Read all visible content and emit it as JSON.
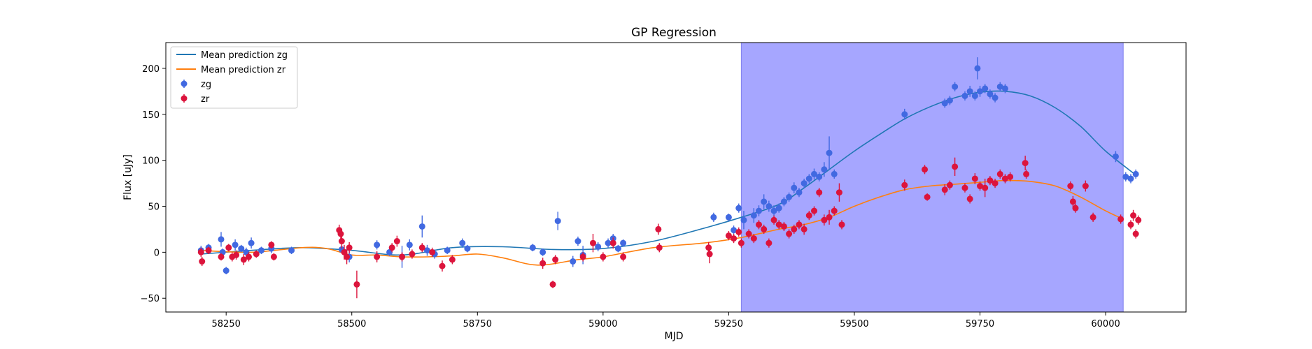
{
  "chart_data": {
    "type": "scatter",
    "title": "GP Regression",
    "xlabel": "MJD",
    "ylabel": "Flux [uJy]",
    "xlim": [
      58130,
      60160
    ],
    "ylim": [
      -65,
      228
    ],
    "xticks": [
      58250,
      58500,
      58750,
      59000,
      59250,
      59500,
      59750,
      60000
    ],
    "yticks": [
      -50,
      0,
      50,
      100,
      150,
      200
    ],
    "grid": false,
    "legend_position": "top-left",
    "shaded_region": {
      "x_start": 59275,
      "x_end": 60035,
      "color": "#a6a6ff"
    },
    "series": [
      {
        "name": "Mean prediction zg",
        "kind": "line",
        "color": "#1f77b4",
        "x": [
          58200,
          58300,
          58400,
          58500,
          58600,
          58700,
          58800,
          58900,
          59000,
          59100,
          59200,
          59275,
          59350,
          59400,
          59450,
          59500,
          59550,
          59600,
          59650,
          59700,
          59750,
          59800,
          59850,
          59900,
          59950,
          60000,
          60060
        ],
        "y": [
          -2,
          2,
          5,
          2,
          -3,
          5,
          6,
          3,
          4,
          12,
          26,
          38,
          52,
          70,
          90,
          110,
          128,
          145,
          158,
          168,
          174,
          175,
          170,
          157,
          137,
          110,
          84
        ]
      },
      {
        "name": "Mean prediction zr",
        "kind": "line",
        "color": "#ff7f0e",
        "x": [
          58200,
          58300,
          58400,
          58450,
          58500,
          58550,
          58600,
          58650,
          58700,
          58750,
          58800,
          58870,
          58950,
          59000,
          59100,
          59200,
          59275,
          59350,
          59400,
          59450,
          59500,
          59550,
          59600,
          59650,
          59700,
          59750,
          59800,
          59850,
          59900,
          59950,
          60000,
          60035
        ],
        "y": [
          2,
          0,
          5,
          4,
          -3,
          -3,
          -5,
          -5,
          -4,
          -2,
          -6,
          -14,
          -8,
          -5,
          5,
          10,
          16,
          25,
          30,
          38,
          50,
          60,
          68,
          72,
          74,
          76,
          78,
          77,
          72,
          60,
          45,
          36
        ]
      },
      {
        "name": "zg",
        "kind": "errorbar",
        "color": "#4169e1",
        "x": [
          58200,
          58215,
          58240,
          58243,
          58250,
          58268,
          58280,
          58290,
          58300,
          58320,
          58340,
          58380,
          58480,
          58495,
          58550,
          58575,
          58600,
          58615,
          58640,
          58650,
          58665,
          58690,
          58720,
          58730,
          58860,
          58880,
          58910,
          58940,
          58950,
          58960,
          58990,
          59010,
          59020,
          59030,
          59040,
          59220,
          59250,
          59260,
          59270,
          59280,
          59300,
          59310,
          59320,
          59330,
          59340,
          59350,
          59360,
          59370,
          59380,
          59390,
          59400,
          59410,
          59420,
          59430,
          59440,
          59450,
          59460,
          59600,
          59680,
          59690,
          59700,
          59720,
          59730,
          59740,
          59745,
          59750,
          59760,
          59770,
          59780,
          59790,
          59800,
          60020,
          60040,
          60050,
          60060
        ],
        "y": [
          2,
          5,
          14,
          0,
          -20,
          8,
          4,
          0,
          10,
          2,
          4,
          2,
          3,
          -5,
          8,
          0,
          -5,
          8,
          28,
          2,
          -2,
          2,
          10,
          4,
          5,
          0,
          34,
          -10,
          12,
          -3,
          6,
          10,
          15,
          4,
          10,
          38,
          38,
          24,
          48,
          35,
          40,
          45,
          55,
          50,
          45,
          48,
          55,
          60,
          70,
          65,
          75,
          80,
          85,
          82,
          90,
          108,
          85,
          150,
          162,
          165,
          180,
          170,
          175,
          170,
          200,
          175,
          178,
          172,
          168,
          180,
          178,
          104,
          82,
          80,
          85
        ],
        "err": [
          5,
          4,
          8,
          4,
          4,
          6,
          4,
          5,
          6,
          4,
          5,
          4,
          4,
          6,
          5,
          4,
          12,
          6,
          12,
          6,
          5,
          4,
          5,
          4,
          4,
          4,
          10,
          6,
          5,
          10,
          5,
          5,
          5,
          4,
          4,
          5,
          4,
          5,
          5,
          10,
          8,
          6,
          8,
          6,
          6,
          5,
          5,
          5,
          6,
          5,
          5,
          5,
          6,
          5,
          8,
          18,
          5,
          6,
          5,
          5,
          5,
          5,
          6,
          5,
          12,
          6,
          5,
          5,
          5,
          5,
          5,
          6,
          5,
          5,
          5
        ]
      },
      {
        "name": "zr",
        "kind": "errorbar",
        "color": "#dc143c",
        "x": [
          58200,
          58202,
          58215,
          58240,
          58255,
          58262,
          58270,
          58285,
          58295,
          58310,
          58340,
          58345,
          58475,
          58478,
          58480,
          58485,
          58490,
          58495,
          58510,
          58550,
          58580,
          58590,
          58600,
          58620,
          58640,
          58660,
          58680,
          58700,
          58880,
          58900,
          58905,
          58960,
          58980,
          59000,
          59020,
          59040,
          59110,
          59112,
          59210,
          59212,
          59250,
          59260,
          59270,
          59275,
          59290,
          59300,
          59310,
          59320,
          59330,
          59340,
          59350,
          59360,
          59370,
          59380,
          59390,
          59400,
          59410,
          59420,
          59430,
          59440,
          59450,
          59460,
          59470,
          59475,
          59600,
          59640,
          59645,
          59680,
          59690,
          59700,
          59720,
          59730,
          59740,
          59750,
          59760,
          59770,
          59780,
          59790,
          59800,
          59810,
          59840,
          59842,
          59930,
          59935,
          59940,
          59960,
          59975,
          60030,
          60050,
          60055,
          60060,
          60065
        ],
        "y": [
          0,
          -10,
          2,
          -5,
          5,
          -5,
          -3,
          -8,
          -5,
          -2,
          8,
          -5,
          24,
          20,
          12,
          0,
          -5,
          5,
          -35,
          -5,
          5,
          12,
          -5,
          -2,
          5,
          0,
          -15,
          -8,
          -12,
          -35,
          -8,
          -5,
          10,
          -5,
          10,
          -5,
          25,
          5,
          5,
          -2,
          18,
          15,
          22,
          10,
          20,
          15,
          30,
          25,
          10,
          35,
          30,
          28,
          20,
          25,
          30,
          25,
          40,
          45,
          65,
          35,
          38,
          45,
          65,
          30,
          73,
          90,
          60,
          68,
          73,
          93,
          70,
          58,
          80,
          72,
          70,
          78,
          75,
          85,
          80,
          82,
          97,
          85,
          72,
          55,
          48,
          72,
          38,
          36,
          30,
          40,
          20,
          35
        ],
        "err": [
          5,
          5,
          4,
          4,
          4,
          5,
          5,
          6,
          5,
          4,
          4,
          4,
          6,
          6,
          8,
          8,
          8,
          6,
          15,
          6,
          5,
          6,
          5,
          5,
          5,
          5,
          6,
          5,
          6,
          4,
          5,
          5,
          10,
          5,
          6,
          5,
          6,
          5,
          6,
          10,
          5,
          5,
          5,
          5,
          5,
          5,
          5,
          5,
          5,
          5,
          5,
          5,
          5,
          5,
          5,
          6,
          5,
          5,
          5,
          6,
          8,
          5,
          10,
          5,
          6,
          5,
          4,
          6,
          5,
          10,
          5,
          5,
          6,
          5,
          10,
          5,
          5,
          5,
          5,
          5,
          8,
          5,
          5,
          6,
          5,
          6,
          5,
          5,
          5,
          6,
          5,
          5
        ]
      }
    ]
  }
}
